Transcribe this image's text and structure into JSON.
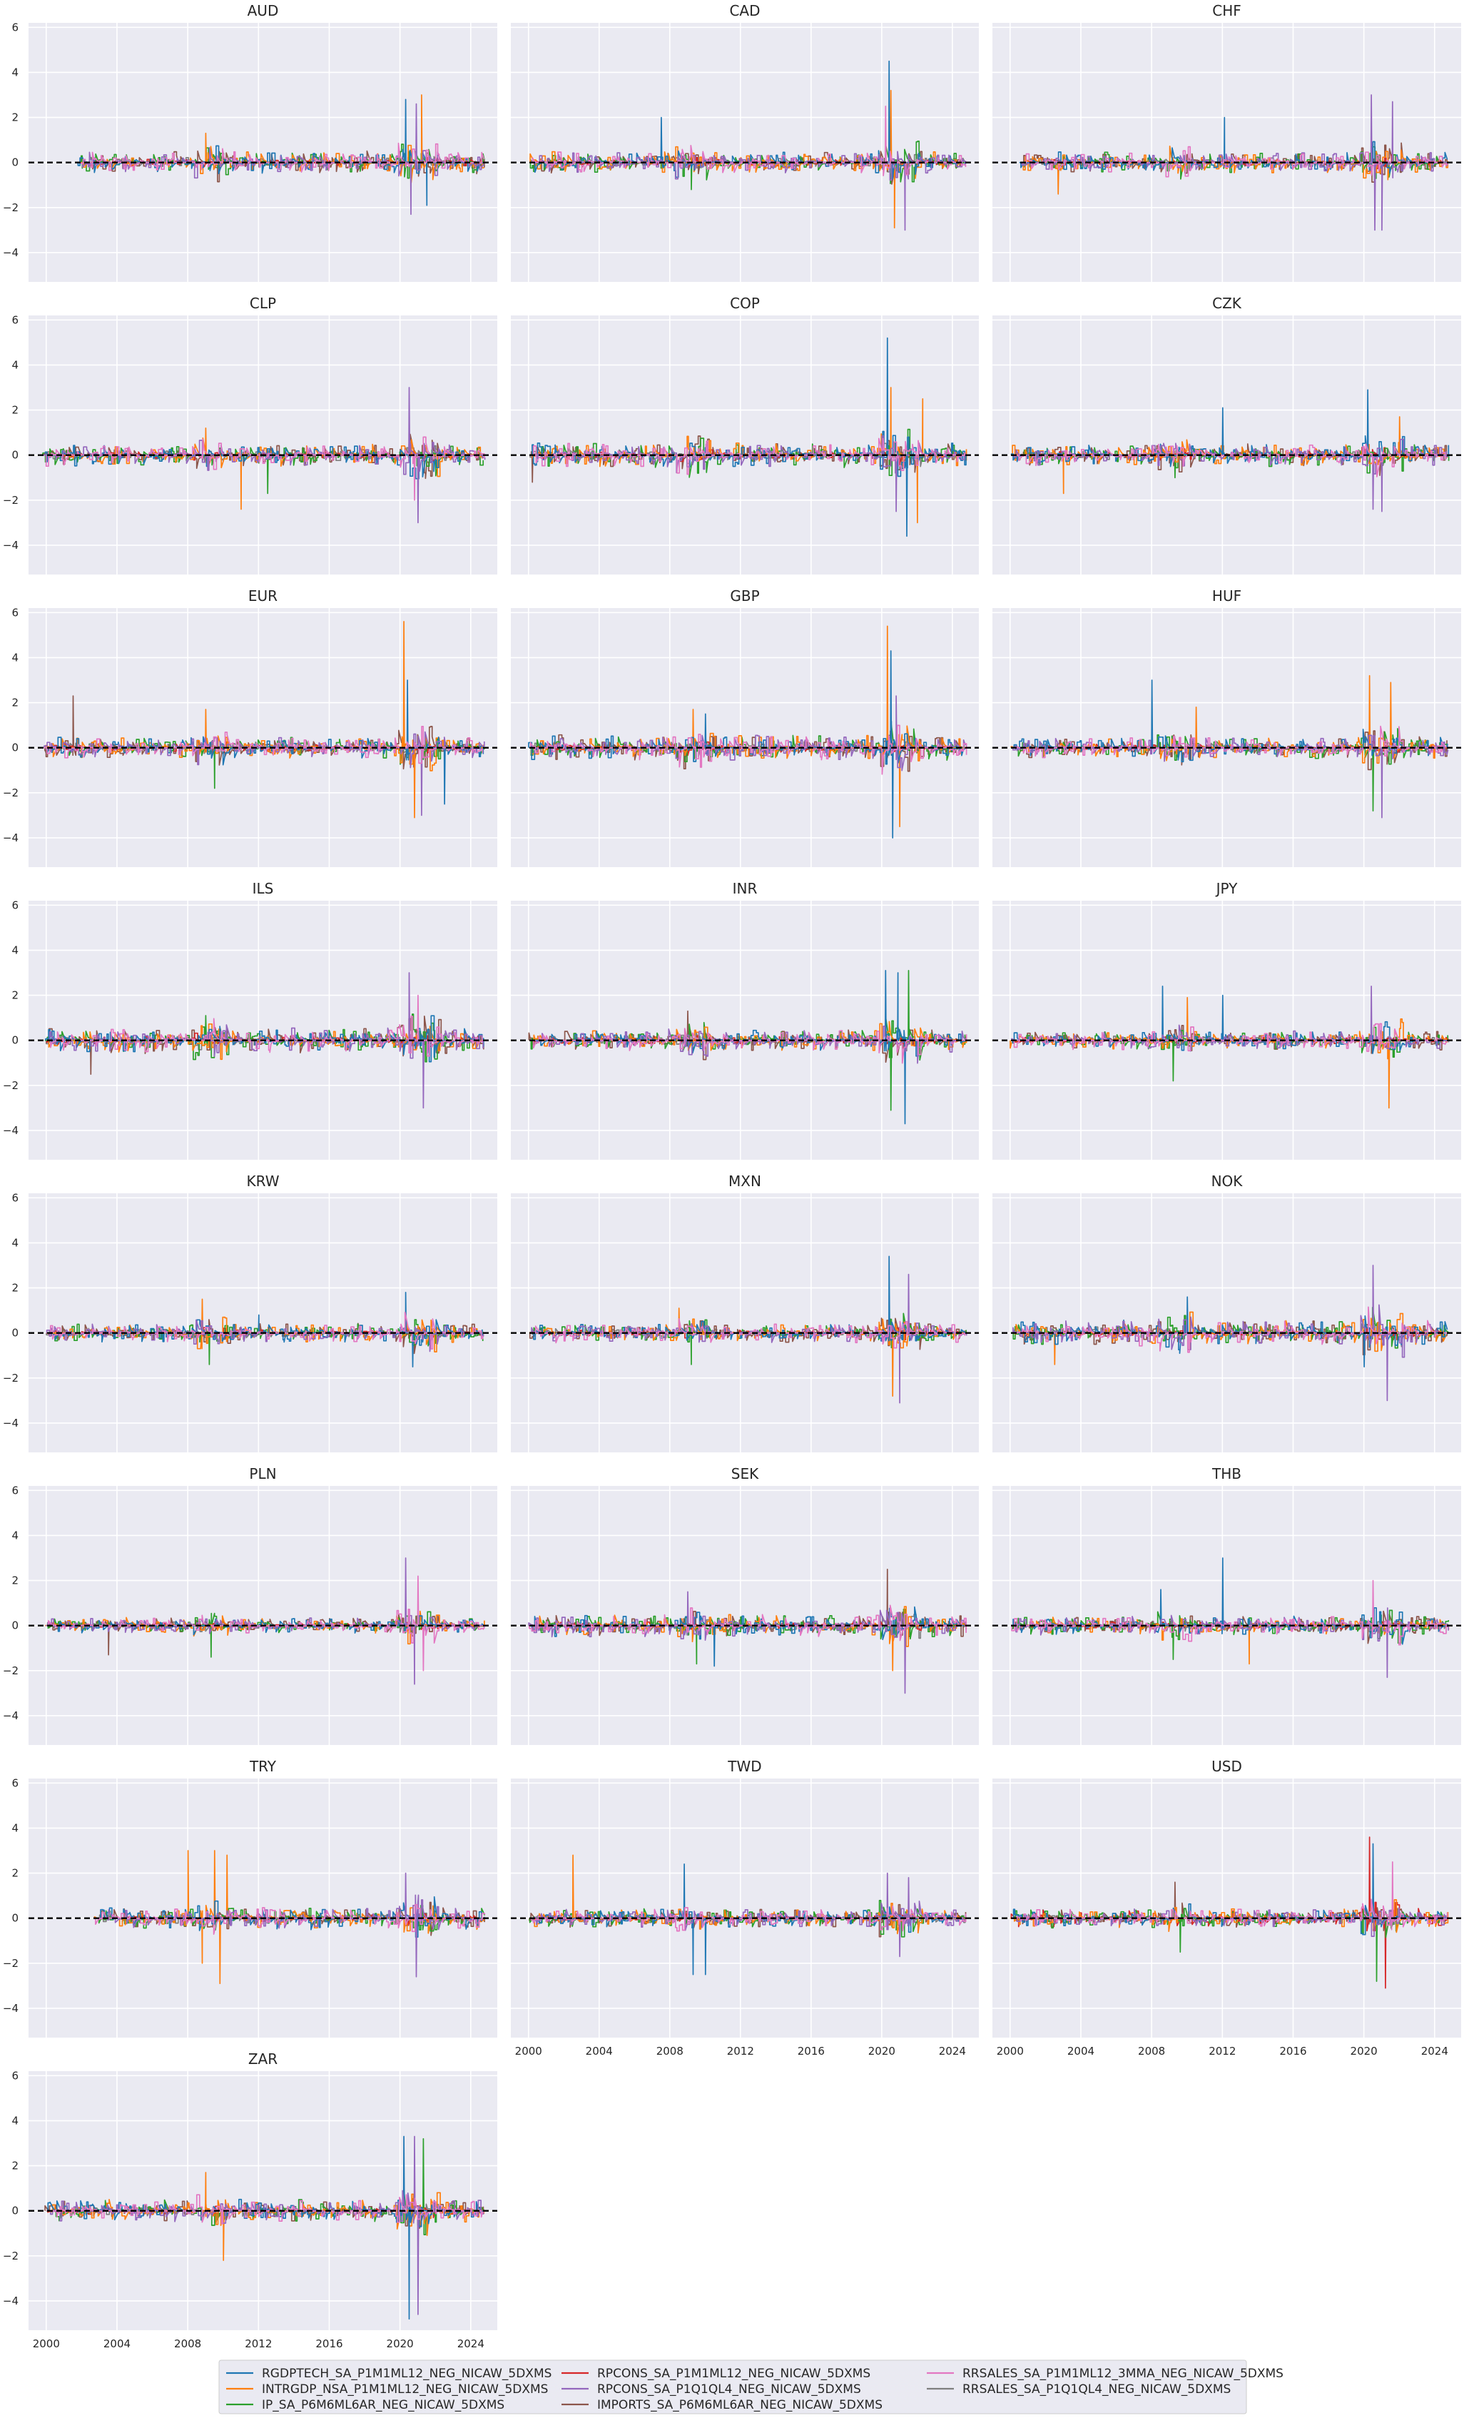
{
  "figure": {
    "legend_columns": 3
  },
  "chart_data": {
    "type": "line",
    "layout": "small-multiples 3 columns x 8 rows",
    "xticks": [
      2000,
      2004,
      2008,
      2012,
      2016,
      2020,
      2024
    ],
    "xlim": [
      1999.0,
      2025.5
    ],
    "yticks": [
      -4,
      -2,
      0,
      2,
      4,
      6
    ],
    "ylim": [
      -5.3,
      6.2
    ],
    "shared_y": true,
    "grid": true,
    "reference_line": {
      "y": 0,
      "style": "dashed",
      "color": "#000000"
    },
    "series": [
      {
        "name": "RGDPTECH_SA_P1M1ML12_NEG_NICAW_5DXMS",
        "color": "#1f77b4"
      },
      {
        "name": "INTRGDP_NSA_P1M1ML12_NEG_NICAW_5DXMS",
        "color": "#ff7f0e"
      },
      {
        "name": "IP_SA_P6M6ML6AR_NEG_NICAW_5DXMS",
        "color": "#2ca02c"
      },
      {
        "name": "RPCONS_SA_P1M1ML12_NEG_NICAW_5DXMS",
        "color": "#d62728"
      },
      {
        "name": "RPCONS_SA_P1Q1QL4_NEG_NICAW_5DXMS",
        "color": "#9467bd"
      },
      {
        "name": "IMPORTS_SA_P6M6ML6AR_NEG_NICAW_5DXMS",
        "color": "#8c564b"
      },
      {
        "name": "RRSALES_SA_P1M1ML12_3MMA_NEG_NICAW_5DXMS",
        "color": "#e377c2"
      },
      {
        "name": "RRSALES_SA_P1Q1QL4_NEG_NICAW_5DXMS",
        "color": "#7f7f7f"
      }
    ],
    "panels": [
      {
        "title": "AUD",
        "start": 2001.8,
        "end": 2024.8,
        "amp": 0.35,
        "spikes": [
          [
            2020.3,
            2.8,
            0,
            1
          ],
          [
            2020.6,
            -2.3,
            4,
            1
          ],
          [
            2021.2,
            3.0,
            1,
            1
          ],
          [
            2021.5,
            -1.9,
            0,
            1
          ],
          [
            2020.9,
            2.6,
            4,
            1
          ],
          [
            2009.0,
            1.3,
            1,
            1
          ]
        ]
      },
      {
        "title": "CAD",
        "start": 2000.0,
        "end": 2024.8,
        "amp": 0.35,
        "spikes": [
          [
            2020.4,
            4.5,
            0,
            1
          ],
          [
            2020.5,
            3.2,
            1,
            1
          ],
          [
            2020.7,
            -2.9,
            1,
            1
          ],
          [
            2021.3,
            -3.0,
            4,
            1
          ],
          [
            2020.2,
            2.5,
            6,
            1
          ],
          [
            2009.2,
            -1.2,
            2,
            1
          ],
          [
            2007.5,
            2.0,
            0,
            1
          ]
        ]
      },
      {
        "title": "CHF",
        "start": 2000.5,
        "end": 2024.8,
        "amp": 0.32,
        "spikes": [
          [
            2020.4,
            3.0,
            4,
            1
          ],
          [
            2020.6,
            -3.0,
            4,
            1
          ],
          [
            2021.0,
            -3.0,
            4,
            1
          ],
          [
            2021.6,
            2.7,
            4,
            1
          ],
          [
            2012.1,
            2.0,
            0,
            1
          ],
          [
            2002.7,
            -1.4,
            1,
            1
          ]
        ]
      },
      {
        "title": "CLP",
        "start": 1999.8,
        "end": 2024.8,
        "amp": 0.35,
        "spikes": [
          [
            2020.5,
            3.0,
            4,
            1
          ],
          [
            2021.0,
            -3.0,
            4,
            1
          ],
          [
            2020.8,
            -2.0,
            6,
            1
          ],
          [
            2011.0,
            -2.4,
            1,
            1
          ],
          [
            2012.5,
            -1.7,
            2,
            1
          ],
          [
            2009.0,
            1.2,
            1,
            1
          ]
        ]
      },
      {
        "title": "COP",
        "start": 2000.0,
        "end": 2024.8,
        "amp": 0.4,
        "spikes": [
          [
            2020.3,
            5.2,
            0,
            1
          ],
          [
            2020.5,
            3.0,
            1,
            1
          ],
          [
            2021.4,
            -3.6,
            0,
            1
          ],
          [
            2022.3,
            2.5,
            1,
            1
          ],
          [
            2022.0,
            -3.0,
            1,
            1
          ],
          [
            2020.8,
            -2.5,
            4,
            1
          ],
          [
            2000.2,
            -1.2,
            5,
            1
          ]
        ]
      },
      {
        "title": "CZK",
        "start": 2000.0,
        "end": 2024.8,
        "amp": 0.35,
        "spikes": [
          [
            2020.2,
            2.9,
            0,
            1
          ],
          [
            2020.5,
            -2.4,
            4,
            1
          ],
          [
            2021.0,
            -2.5,
            4,
            1
          ],
          [
            2022.0,
            1.7,
            1,
            1
          ],
          [
            2012.0,
            2.1,
            0,
            1
          ],
          [
            2003.0,
            -1.7,
            1,
            1
          ],
          [
            2009.3,
            -1.0,
            2,
            1
          ]
        ]
      },
      {
        "title": "EUR",
        "start": 1999.8,
        "end": 2024.8,
        "amp": 0.35,
        "spikes": [
          [
            2020.2,
            5.6,
            1,
            1
          ],
          [
            2020.4,
            3.0,
            0,
            1
          ],
          [
            2020.8,
            -3.1,
            1,
            1
          ],
          [
            2021.2,
            -3.0,
            4,
            1
          ],
          [
            2022.5,
            -2.5,
            0,
            1
          ],
          [
            2009.0,
            1.7,
            1,
            1
          ],
          [
            2009.5,
            -1.8,
            2,
            1
          ],
          [
            2001.5,
            2.3,
            5,
            1
          ]
        ]
      },
      {
        "title": "GBP",
        "start": 2000.0,
        "end": 2024.8,
        "amp": 0.4,
        "spikes": [
          [
            2020.3,
            5.4,
            1,
            1
          ],
          [
            2020.5,
            4.3,
            0,
            1
          ],
          [
            2020.6,
            -4.0,
            0,
            1
          ],
          [
            2021.0,
            -3.5,
            1,
            1
          ],
          [
            2020.8,
            2.3,
            4,
            1
          ],
          [
            2009.3,
            1.7,
            1,
            1
          ],
          [
            2010.0,
            1.5,
            0,
            1
          ]
        ]
      },
      {
        "title": "HUF",
        "start": 2000.0,
        "end": 2024.8,
        "amp": 0.35,
        "spikes": [
          [
            2020.3,
            3.2,
            1,
            1
          ],
          [
            2020.5,
            -2.8,
            2,
            1
          ],
          [
            2021.0,
            -3.1,
            4,
            1
          ],
          [
            2021.5,
            2.9,
            1,
            1
          ],
          [
            2008.0,
            3.0,
            0,
            1
          ],
          [
            2010.5,
            1.8,
            1,
            1
          ]
        ]
      },
      {
        "title": "ILS",
        "start": 1999.9,
        "end": 2024.8,
        "amp": 0.4,
        "spikes": [
          [
            2020.5,
            3.0,
            4,
            1
          ],
          [
            2021.3,
            -3.0,
            4,
            1
          ],
          [
            2021.0,
            2.0,
            6,
            1
          ],
          [
            2002.5,
            -1.5,
            5,
            1
          ],
          [
            2009.0,
            1.1,
            2,
            1
          ]
        ]
      },
      {
        "title": "INR",
        "start": 2000.0,
        "end": 2024.8,
        "amp": 0.35,
        "spikes": [
          [
            2020.2,
            3.1,
            0,
            1
          ],
          [
            2020.5,
            -3.1,
            2,
            1
          ],
          [
            2021.3,
            -3.7,
            0,
            1
          ],
          [
            2021.5,
            3.1,
            2,
            1
          ],
          [
            2020.9,
            3.0,
            0,
            1
          ],
          [
            2009.0,
            1.3,
            5,
            1
          ]
        ]
      },
      {
        "title": "JPY",
        "start": 2000.0,
        "end": 2024.8,
        "amp": 0.3,
        "spikes": [
          [
            2008.6,
            2.4,
            0,
            1
          ],
          [
            2009.2,
            -1.8,
            2,
            1
          ],
          [
            2012.0,
            2.0,
            0,
            1
          ],
          [
            2020.4,
            2.4,
            4,
            1
          ],
          [
            2021.4,
            -3.0,
            1,
            1
          ],
          [
            2010.0,
            1.9,
            1,
            1
          ]
        ]
      },
      {
        "title": "KRW",
        "start": 2000.0,
        "end": 2024.8,
        "amp": 0.3,
        "spikes": [
          [
            2008.8,
            1.5,
            1,
            1
          ],
          [
            2009.2,
            -1.4,
            2,
            1
          ],
          [
            2020.3,
            1.8,
            0,
            1
          ],
          [
            2020.7,
            -1.5,
            0,
            1
          ],
          [
            2012.0,
            0.8,
            0,
            1
          ]
        ]
      },
      {
        "title": "MXN",
        "start": 2000.0,
        "end": 2024.8,
        "amp": 0.3,
        "spikes": [
          [
            2020.4,
            3.4,
            0,
            1
          ],
          [
            2020.6,
            -2.8,
            1,
            1
          ],
          [
            2021.0,
            -3.1,
            4,
            1
          ],
          [
            2021.5,
            2.6,
            4,
            1
          ],
          [
            2009.2,
            -1.4,
            2,
            1
          ],
          [
            2008.5,
            1.1,
            1,
            1
          ]
        ]
      },
      {
        "title": "NOK",
        "start": 2000.0,
        "end": 2024.8,
        "amp": 0.4,
        "spikes": [
          [
            2020.5,
            3.0,
            4,
            1
          ],
          [
            2021.3,
            -3.0,
            4,
            1
          ],
          [
            2020.0,
            -1.5,
            0,
            1
          ],
          [
            2002.5,
            -1.4,
            1,
            1
          ],
          [
            2010.0,
            1.6,
            0,
            1
          ]
        ]
      },
      {
        "title": "PLN",
        "start": 1999.9,
        "end": 2024.8,
        "amp": 0.25,
        "spikes": [
          [
            2020.3,
            3.0,
            4,
            1
          ],
          [
            2020.8,
            -2.6,
            4,
            1
          ],
          [
            2021.3,
            -2.0,
            6,
            1
          ],
          [
            2021.0,
            2.2,
            6,
            1
          ],
          [
            2003.5,
            -1.3,
            5,
            1
          ],
          [
            2009.3,
            -1.4,
            2,
            1
          ]
        ]
      },
      {
        "title": "SEK",
        "start": 2000.0,
        "end": 2024.8,
        "amp": 0.35,
        "spikes": [
          [
            2020.3,
            2.5,
            5,
            1
          ],
          [
            2020.6,
            -2.0,
            1,
            1
          ],
          [
            2021.3,
            -3.0,
            4,
            1
          ],
          [
            2009.0,
            1.5,
            4,
            1
          ],
          [
            2009.5,
            -1.7,
            2,
            1
          ],
          [
            2010.5,
            -1.8,
            0,
            1
          ]
        ]
      },
      {
        "title": "THB",
        "start": 2000.0,
        "end": 2024.8,
        "amp": 0.3,
        "spikes": [
          [
            2012.0,
            3.0,
            0,
            1
          ],
          [
            2008.5,
            1.6,
            0,
            1
          ],
          [
            2009.2,
            -1.5,
            2,
            1
          ],
          [
            2020.5,
            2.0,
            6,
            1
          ],
          [
            2021.3,
            -2.3,
            4,
            1
          ],
          [
            2013.5,
            -1.7,
            1,
            1
          ]
        ]
      },
      {
        "title": "TRY",
        "start": 2002.7,
        "end": 2024.8,
        "amp": 0.35,
        "spikes": [
          [
            2008.0,
            3.0,
            1,
            1
          ],
          [
            2008.8,
            -2.0,
            1,
            1
          ],
          [
            2009.5,
            3.0,
            1,
            1
          ],
          [
            2009.8,
            -2.9,
            1,
            1
          ],
          [
            2010.2,
            2.8,
            1,
            1
          ],
          [
            2020.3,
            2.0,
            4,
            1
          ],
          [
            2020.9,
            -2.6,
            4,
            1
          ]
        ]
      },
      {
        "title": "TWD",
        "start": 2000.0,
        "end": 2024.8,
        "amp": 0.3,
        "spikes": [
          [
            2002.5,
            2.8,
            1,
            1
          ],
          [
            2008.8,
            2.4,
            0,
            1
          ],
          [
            2009.3,
            -2.5,
            0,
            1
          ],
          [
            2010.0,
            -2.5,
            0,
            1
          ],
          [
            2020.3,
            2.0,
            4,
            1
          ],
          [
            2021.5,
            1.8,
            4,
            1
          ],
          [
            2021.0,
            -1.7,
            4,
            1
          ]
        ]
      },
      {
        "title": "USD",
        "start": 2000.0,
        "end": 2024.8,
        "amp": 0.3,
        "spikes": [
          [
            2020.3,
            3.6,
            3,
            1
          ],
          [
            2020.5,
            3.3,
            0,
            1
          ],
          [
            2020.7,
            -2.8,
            2,
            1
          ],
          [
            2021.2,
            -3.1,
            3,
            1
          ],
          [
            2021.6,
            2.5,
            6,
            1
          ],
          [
            2009.3,
            1.6,
            5,
            1
          ],
          [
            2009.6,
            -1.5,
            2,
            1
          ]
        ]
      },
      {
        "title": "ZAR",
        "start": 1999.9,
        "end": 2024.8,
        "amp": 0.35,
        "spikes": [
          [
            2020.2,
            3.3,
            0,
            1
          ],
          [
            2020.5,
            -4.8,
            0,
            1
          ],
          [
            2021.0,
            -4.6,
            4,
            1
          ],
          [
            2021.3,
            3.2,
            2,
            1
          ],
          [
            2020.8,
            3.3,
            4,
            1
          ],
          [
            2009.0,
            1.7,
            1,
            1
          ],
          [
            2010.0,
            -2.2,
            1,
            1
          ]
        ]
      }
    ]
  }
}
